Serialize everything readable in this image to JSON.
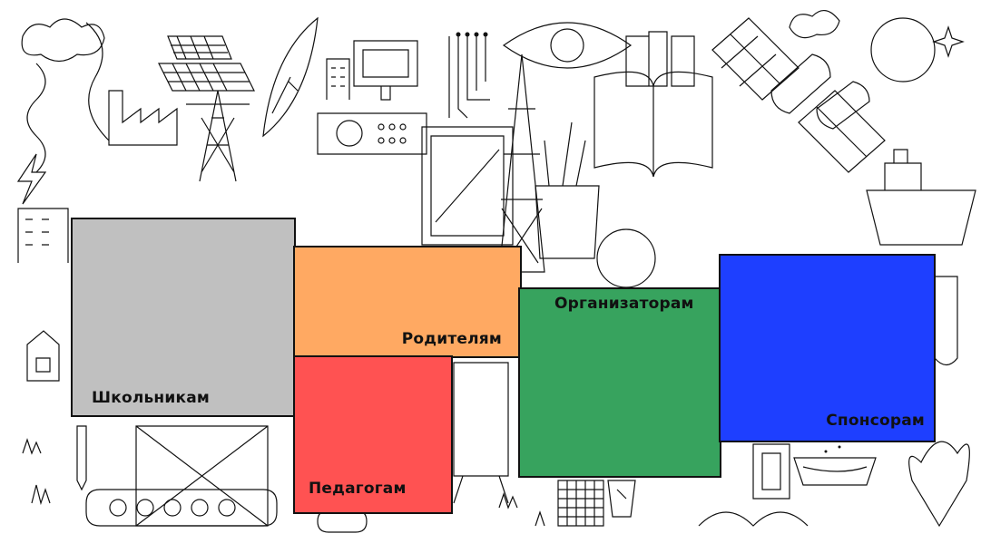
{
  "tiles": [
    {
      "key": "students",
      "label": "Школьникам",
      "color": "#c0c0c0"
    },
    {
      "key": "parents",
      "label": "Родителям",
      "color": "#ffa962"
    },
    {
      "key": "teachers",
      "label": "Педагогам",
      "color": "#ff5252"
    },
    {
      "key": "organizers",
      "label": "Организаторам",
      "color": "#37a35e"
    },
    {
      "key": "sponsors",
      "label": "Спонсорам",
      "color": "#1e3fff"
    }
  ],
  "background": {
    "style": "line-art collage illustration",
    "line_color": "#111111"
  }
}
